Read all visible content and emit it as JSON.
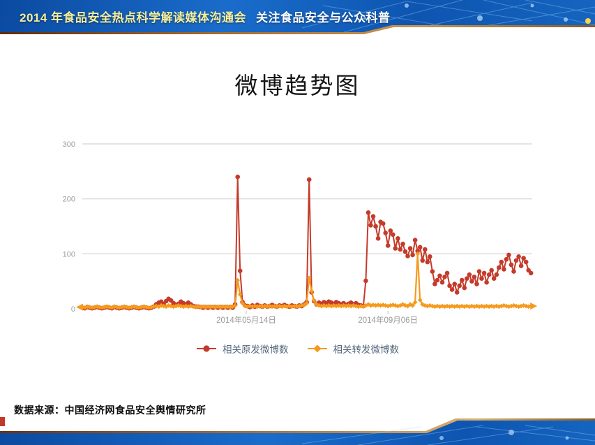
{
  "header": {
    "title_main": "2014 年食品安全热点科学解读媒体沟通会",
    "title_sub": "关注食品安全与公众科普"
  },
  "slide": {
    "title": "微博趋势图"
  },
  "footer": {
    "source": "数据来源：中国经济网食品安全舆情研究所"
  },
  "colors": {
    "banner_blue": "#1160bb",
    "banner_trim_bronze": "#b8834a",
    "series_original_red": "#c43b2b",
    "series_repost_orange": "#f59a1d",
    "axis_label_gray": "#999999"
  },
  "chart_data": {
    "type": "line",
    "title": "微博趋势图",
    "grid": "horizontal",
    "legend_position": "bottom",
    "x_axis": {
      "type": "time-days-of-2014",
      "start": 0,
      "step": 2,
      "range": [
        0,
        365
      ],
      "tick_labels": [
        {
          "x": 133,
          "label": "2014年05月14日"
        },
        {
          "x": 248,
          "label": "2014年09月06日"
        }
      ]
    },
    "y_axis": {
      "ticks": [
        0,
        100,
        200,
        300
      ],
      "range": [
        0,
        300
      ]
    },
    "series": [
      {
        "name": "相关原发微博数",
        "color": "#c43b2b",
        "marker": "circle",
        "line_width": 2,
        "arrows": false,
        "values": [
          2,
          1,
          3,
          2,
          1,
          2,
          3,
          2,
          1,
          2,
          3,
          2,
          1,
          3,
          2,
          1,
          2,
          3,
          2,
          1,
          2,
          3,
          2,
          1,
          2,
          3,
          2,
          1,
          2,
          4,
          8,
          11,
          13,
          9,
          14,
          18,
          15,
          10,
          7,
          9,
          13,
          10,
          8,
          11,
          8,
          5,
          4,
          4,
          3,
          2,
          3,
          2,
          3,
          2,
          3,
          2,
          3,
          2,
          3,
          2,
          3,
          2,
          8,
          240,
          69,
          12,
          6,
          5,
          3,
          6,
          4,
          7,
          5,
          4,
          6,
          4,
          5,
          7,
          5,
          4,
          6,
          5,
          7,
          5,
          4,
          6,
          5,
          4,
          6,
          5,
          8,
          12,
          235,
          30,
          14,
          8,
          11,
          9,
          12,
          10,
          13,
          11,
          9,
          12,
          10,
          8,
          10,
          7,
          9,
          11,
          8,
          10,
          7,
          6,
          5,
          51,
          175,
          152,
          168,
          150,
          128,
          158,
          155,
          138,
          115,
          142,
          135,
          110,
          128,
          108,
          118,
          104,
          96,
          110,
          98,
          125,
          105,
          112,
          88,
          108,
          85,
          95,
          68,
          45,
          52,
          60,
          48,
          58,
          65,
          42,
          35,
          45,
          30,
          42,
          52,
          38,
          55,
          62,
          50,
          58,
          45,
          68,
          55,
          65,
          48,
          62,
          70,
          55,
          62,
          75,
          85,
          72,
          90,
          98,
          80,
          68,
          88,
          95,
          78,
          92,
          85,
          70,
          65
        ]
      },
      {
        "name": "相关转发微博数",
        "color": "#f59a1d",
        "marker": "diamond",
        "line_width": 2.2,
        "arrows": true,
        "values": [
          3,
          2,
          4,
          3,
          2,
          3,
          4,
          3,
          2,
          3,
          4,
          3,
          2,
          4,
          3,
          2,
          3,
          4,
          3,
          2,
          3,
          4,
          3,
          2,
          3,
          4,
          3,
          2,
          3,
          4,
          5,
          4,
          6,
          5,
          4,
          6,
          5,
          4,
          5,
          6,
          5,
          4,
          5,
          4,
          5,
          4,
          3,
          4,
          3,
          4,
          3,
          4,
          3,
          4,
          3,
          4,
          3,
          4,
          3,
          4,
          3,
          4,
          6,
          52,
          26,
          10,
          5,
          4,
          5,
          4,
          5,
          4,
          5,
          4,
          5,
          4,
          5,
          4,
          5,
          4,
          5,
          4,
          5,
          4,
          5,
          4,
          5,
          4,
          5,
          6,
          7,
          10,
          56,
          32,
          15,
          8,
          6,
          5,
          6,
          5,
          6,
          5,
          6,
          5,
          6,
          5,
          6,
          5,
          6,
          5,
          6,
          5,
          4,
          5,
          4,
          6,
          8,
          6,
          7,
          6,
          7,
          6,
          7,
          6,
          5,
          6,
          7,
          6,
          5,
          6,
          8,
          6,
          5,
          8,
          6,
          12,
          100,
          16,
          8,
          6,
          5,
          6,
          5,
          4,
          5,
          4,
          5,
          4,
          5,
          4,
          5,
          4,
          5,
          4,
          5,
          4,
          5,
          4,
          5,
          4,
          5,
          4,
          5,
          4,
          5,
          4,
          5,
          4,
          5,
          4,
          5,
          6,
          5,
          4,
          5,
          6,
          5,
          4,
          5,
          6,
          5,
          4,
          5
        ]
      }
    ]
  }
}
